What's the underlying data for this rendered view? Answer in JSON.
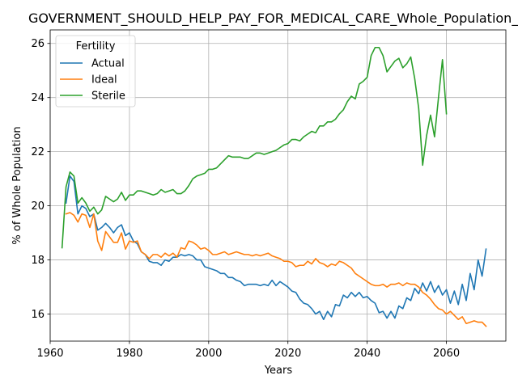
{
  "chart_data": {
    "type": "line",
    "title": "GOVERNMENT_SHOULD_HELP_PAY_FOR_MEDICAL_CARE_Whole_Population_Sco",
    "xlabel": "Years",
    "ylabel": "% of Whole Population",
    "xlim": [
      1960,
      2075
    ],
    "ylim": [
      15,
      26.5
    ],
    "xticks": [
      1960,
      1980,
      2000,
      2020,
      2040,
      2060
    ],
    "yticks": [
      16,
      18,
      20,
      22,
      24,
      26
    ],
    "grid": true,
    "legend": {
      "title": "Fertility",
      "placement": "top-left"
    },
    "series": [
      {
        "name": "Actual",
        "color": "#1f77b4",
        "x": [
          1964,
          1965,
          1966,
          1967,
          1968,
          1969,
          1970,
          1971,
          1972,
          1973,
          1974,
          1975,
          1976,
          1977,
          1978,
          1979,
          1980,
          1981,
          1982,
          1983,
          1984,
          1985,
          1986,
          1987,
          1988,
          1989,
          1990,
          1991,
          1992,
          1993,
          1994,
          1995,
          1996,
          1997,
          1998,
          1999,
          2000,
          2001,
          2002,
          2003,
          2004,
          2005,
          2006,
          2007,
          2008,
          2009,
          2010,
          2011,
          2012,
          2013,
          2014,
          2015,
          2016,
          2017,
          2018,
          2019,
          2020,
          2021,
          2022,
          2023,
          2024,
          2025,
          2026,
          2027,
          2028,
          2029,
          2030,
          2031,
          2032,
          2033,
          2034,
          2035,
          2036,
          2037,
          2038,
          2039,
          2040,
          2041,
          2042,
          2043,
          2044,
          2045,
          2046,
          2047,
          2048,
          2049,
          2050,
          2051,
          2052,
          2053,
          2054,
          2055,
          2056,
          2057,
          2058,
          2059,
          2060,
          2061,
          2062,
          2063,
          2064,
          2065,
          2066,
          2067,
          2068,
          2069,
          2070
        ],
        "y": [
          20.1,
          21.1,
          20.9,
          19.7,
          20.0,
          19.9,
          19.6,
          19.7,
          19.1,
          19.2,
          19.35,
          19.2,
          19.0,
          19.2,
          19.3,
          18.9,
          19.0,
          18.7,
          18.6,
          18.3,
          18.2,
          17.95,
          17.9,
          17.9,
          17.8,
          18.0,
          17.95,
          18.1,
          18.1,
          18.2,
          18.15,
          18.2,
          18.15,
          18.0,
          18.0,
          17.75,
          17.7,
          17.65,
          17.6,
          17.5,
          17.5,
          17.35,
          17.35,
          17.25,
          17.2,
          17.05,
          17.1,
          17.1,
          17.1,
          17.05,
          17.1,
          17.05,
          17.25,
          17.05,
          17.2,
          17.1,
          17.0,
          16.85,
          16.8,
          16.55,
          16.4,
          16.35,
          16.2,
          16.0,
          16.1,
          15.8,
          16.1,
          15.9,
          16.35,
          16.3,
          16.7,
          16.6,
          16.8,
          16.65,
          16.8,
          16.6,
          16.65,
          16.5,
          16.4,
          16.05,
          16.1,
          15.85,
          16.1,
          15.85,
          16.3,
          16.2,
          16.6,
          16.5,
          16.95,
          16.75,
          17.15,
          16.85,
          17.2,
          16.8,
          17.05,
          16.7,
          16.9,
          16.4,
          16.85,
          16.35,
          17.1,
          16.5,
          17.5,
          16.9,
          18.0,
          17.4,
          18.4
        ]
      },
      {
        "name": "Ideal",
        "color": "#ff7f0e",
        "x": [
          1964,
          1965,
          1966,
          1967,
          1968,
          1969,
          1970,
          1971,
          1972,
          1973,
          1974,
          1975,
          1976,
          1977,
          1978,
          1979,
          1980,
          1981,
          1982,
          1983,
          1984,
          1985,
          1986,
          1987,
          1988,
          1989,
          1990,
          1991,
          1992,
          1993,
          1994,
          1995,
          1996,
          1997,
          1998,
          1999,
          2000,
          2001,
          2002,
          2003,
          2004,
          2005,
          2006,
          2007,
          2008,
          2009,
          2010,
          2011,
          2012,
          2013,
          2014,
          2015,
          2016,
          2017,
          2018,
          2019,
          2020,
          2021,
          2022,
          2023,
          2024,
          2025,
          2026,
          2027,
          2028,
          2029,
          2030,
          2031,
          2032,
          2033,
          2034,
          2035,
          2036,
          2037,
          2038,
          2039,
          2040,
          2041,
          2042,
          2043,
          2044,
          2045,
          2046,
          2047,
          2048,
          2049,
          2050,
          2051,
          2052,
          2053,
          2054,
          2055,
          2056,
          2057,
          2058,
          2059,
          2060,
          2061,
          2062,
          2063,
          2064,
          2065,
          2066,
          2067,
          2068,
          2069,
          2070
        ],
        "y": [
          19.7,
          19.75,
          19.65,
          19.4,
          19.7,
          19.65,
          19.2,
          19.7,
          18.7,
          18.35,
          19.05,
          18.85,
          18.65,
          18.65,
          19.0,
          18.4,
          18.7,
          18.65,
          18.7,
          18.3,
          18.2,
          18.05,
          18.2,
          18.2,
          18.1,
          18.25,
          18.15,
          18.25,
          18.1,
          18.45,
          18.4,
          18.7,
          18.65,
          18.55,
          18.4,
          18.45,
          18.35,
          18.2,
          18.2,
          18.25,
          18.3,
          18.2,
          18.25,
          18.3,
          18.25,
          18.2,
          18.2,
          18.15,
          18.2,
          18.15,
          18.2,
          18.25,
          18.15,
          18.1,
          18.05,
          17.95,
          17.95,
          17.9,
          17.75,
          17.8,
          17.8,
          17.95,
          17.85,
          18.05,
          17.9,
          17.85,
          17.75,
          17.85,
          17.8,
          17.95,
          17.9,
          17.8,
          17.7,
          17.5,
          17.4,
          17.3,
          17.2,
          17.1,
          17.05,
          17.05,
          17.1,
          17.0,
          17.1,
          17.1,
          17.15,
          17.05,
          17.15,
          17.1,
          17.1,
          17.0,
          16.8,
          16.7,
          16.55,
          16.35,
          16.2,
          16.15,
          16.0,
          16.1,
          15.95,
          15.8,
          15.9,
          15.65,
          15.7,
          15.75,
          15.7,
          15.7,
          15.55
        ]
      },
      {
        "name": "Sterile",
        "color": "#2ca02c",
        "x": [
          1963,
          1964,
          1965,
          1966,
          1967,
          1968,
          1969,
          1970,
          1971,
          1972,
          1973,
          1974,
          1975,
          1976,
          1977,
          1978,
          1979,
          1980,
          1981,
          1982,
          1983,
          1984,
          1985,
          1986,
          1987,
          1988,
          1989,
          1990,
          1991,
          1992,
          1993,
          1994,
          1995,
          1996,
          1997,
          1998,
          1999,
          2000,
          2001,
          2002,
          2003,
          2004,
          2005,
          2006,
          2007,
          2008,
          2009,
          2010,
          2011,
          2012,
          2013,
          2014,
          2015,
          2016,
          2017,
          2018,
          2019,
          2020,
          2021,
          2022,
          2023,
          2024,
          2025,
          2026,
          2027,
          2028,
          2029,
          2030,
          2031,
          2032,
          2033,
          2034,
          2035,
          2036,
          2037,
          2038,
          2039,
          2040,
          2041,
          2042,
          2043,
          2044,
          2045,
          2046,
          2047,
          2048,
          2049,
          2050,
          2051,
          2052,
          2053,
          2054,
          2055,
          2056,
          2057,
          2058,
          2059,
          2060
        ],
        "y": [
          18.45,
          20.7,
          21.25,
          21.1,
          20.1,
          20.3,
          20.1,
          19.8,
          19.95,
          19.7,
          19.85,
          20.35,
          20.25,
          20.15,
          20.25,
          20.5,
          20.2,
          20.4,
          20.4,
          20.55,
          20.55,
          20.5,
          20.45,
          20.4,
          20.45,
          20.6,
          20.5,
          20.55,
          20.6,
          20.45,
          20.45,
          20.55,
          20.75,
          21.0,
          21.1,
          21.15,
          21.2,
          21.35,
          21.35,
          21.4,
          21.55,
          21.7,
          21.85,
          21.8,
          21.8,
          21.8,
          21.75,
          21.75,
          21.85,
          21.95,
          21.95,
          21.9,
          21.95,
          22.0,
          22.05,
          22.15,
          22.25,
          22.3,
          22.45,
          22.45,
          22.4,
          22.55,
          22.65,
          22.75,
          22.7,
          22.95,
          22.95,
          23.1,
          23.1,
          23.2,
          23.4,
          23.55,
          23.85,
          24.05,
          23.95,
          24.5,
          24.6,
          24.75,
          25.55,
          25.85,
          25.85,
          25.55,
          24.95,
          25.15,
          25.35,
          25.45,
          25.1,
          25.25,
          25.5,
          24.7,
          23.6,
          21.5,
          22.6,
          23.35,
          22.55,
          24.0,
          25.4,
          23.4
        ]
      }
    ]
  }
}
